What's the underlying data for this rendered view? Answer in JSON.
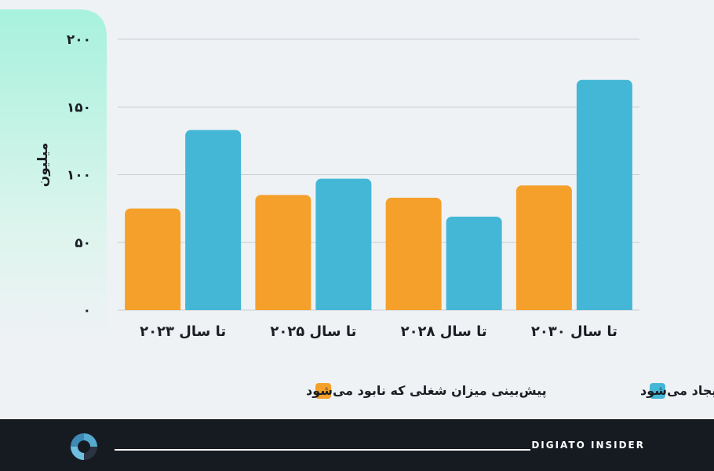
{
  "chart_data": {
    "type": "bar",
    "ylabel": "میلیون",
    "ylim": [
      0,
      200
    ],
    "yticks": [
      "۰",
      "۵۰",
      "۱۰۰",
      "۱۵۰",
      "۲۰۰"
    ],
    "yticks_values": [
      0,
      50,
      100,
      150,
      200
    ],
    "categories": [
      "تا سال ۲۰۲۳",
      "تا سال ۲۰۲۵",
      "تا سال ۲۰۲۸",
      "تا سال ۲۰۳۰"
    ],
    "series": [
      {
        "name": "پیش‌بینی میزان شغلی که نابود می‌شود",
        "color": "#f5a02a",
        "values": [
          75,
          85,
          83,
          92
        ]
      },
      {
        "name": "پیش‌بینی میزان شغلی که ایجاد می‌شود",
        "color": "#44b7d6",
        "values": [
          133,
          97,
          69,
          170
        ]
      }
    ],
    "grid": true,
    "legend_position": "bottom"
  },
  "footer": {
    "brand": "DIGIATO INSIDER"
  },
  "colors": {
    "background": "#eef2f5",
    "panel": "#aef1de",
    "footer": "#161b22",
    "grid": "#c9ced3"
  }
}
